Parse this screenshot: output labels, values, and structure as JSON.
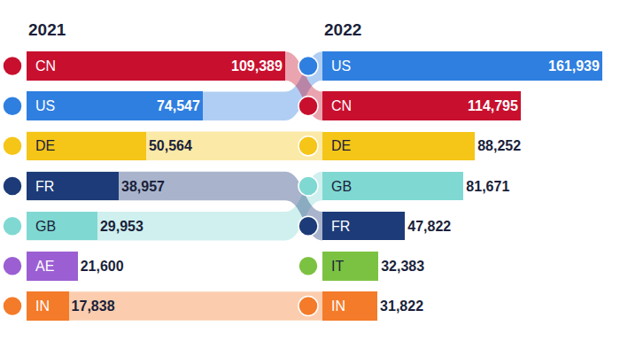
{
  "chart_data": [
    {
      "type": "bar",
      "title": "2021",
      "orientation": "horizontal",
      "data_labels": true,
      "categories": [
        "CN",
        "US",
        "DE",
        "FR",
        "GB",
        "AE",
        "IN"
      ],
      "values": [
        109389,
        74547,
        50564,
        38957,
        29953,
        21600,
        17838
      ],
      "value_labels": [
        "109,389",
        "74,547",
        "50,564",
        "38,957",
        "29,953",
        "21,600",
        "17,838"
      ],
      "colors": [
        "#c8102e",
        "#2f7fe0",
        "#f5c518",
        "#1c3b78",
        "#80d8d2",
        "#9b5fd3",
        "#f47b2a"
      ],
      "xlim": [
        0,
        109389
      ]
    },
    {
      "type": "bar",
      "title": "2022",
      "orientation": "horizontal",
      "data_labels": true,
      "categories": [
        "US",
        "CN",
        "DE",
        "GB",
        "FR",
        "IT",
        "IN"
      ],
      "values": [
        161939,
        114795,
        88252,
        81671,
        47822,
        32383,
        31822
      ],
      "value_labels": [
        "161,939",
        "114,795",
        "88,252",
        "81,671",
        "47,822",
        "32,383",
        "31,822"
      ],
      "colors": [
        "#2f7fe0",
        "#c8102e",
        "#f5c518",
        "#80d8d2",
        "#1c3b78",
        "#7cc242",
        "#f47b2a"
      ],
      "xlim": [
        0,
        161939
      ]
    }
  ]
}
